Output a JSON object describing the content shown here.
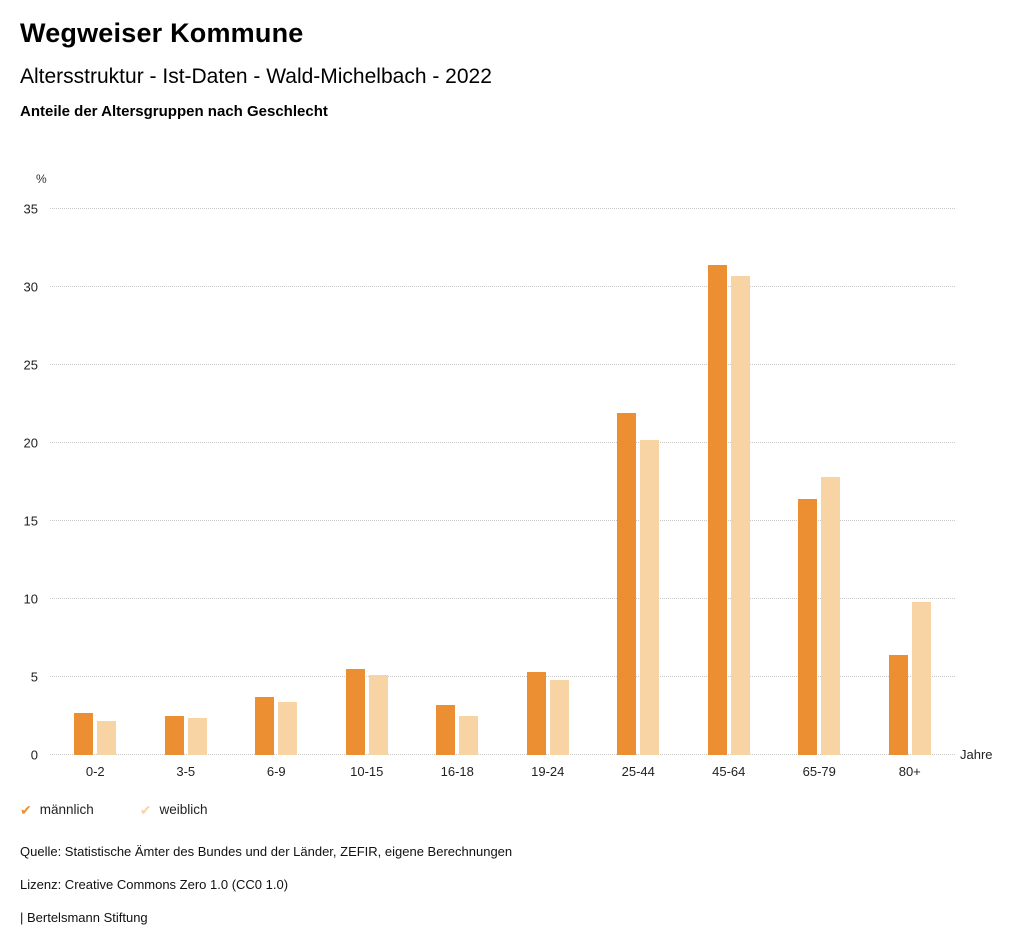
{
  "header": {
    "title": "Wegweiser Kommune",
    "subtitle": "Altersstruktur - Ist-Daten - Wald-Michelbach - 2022",
    "subsubtitle": "Anteile der Altersgruppen nach Geschlecht"
  },
  "chart_data": {
    "type": "bar",
    "title": "Anteile der Altersgruppen nach Geschlecht",
    "unit": "%",
    "xlabel": "Jahre",
    "ylabel": "%",
    "ylim": [
      0,
      35
    ],
    "yticks": [
      0,
      5,
      10,
      15,
      20,
      25,
      30,
      35
    ],
    "grid": "horizontal-dotted",
    "legend_position": "bottom-left",
    "categories": [
      "0-2",
      "3-5",
      "6-9",
      "10-15",
      "16-18",
      "19-24",
      "25-44",
      "45-64",
      "65-79",
      "80+"
    ],
    "series": [
      {
        "name": "männlich",
        "color": "#EC8F33",
        "values": [
          2.7,
          2.5,
          3.7,
          5.5,
          3.2,
          5.3,
          21.9,
          31.4,
          16.4,
          6.4
        ]
      },
      {
        "name": "weiblich",
        "color": "#F8D3A3",
        "values": [
          2.2,
          2.4,
          3.4,
          5.1,
          2.5,
          4.8,
          20.2,
          30.7,
          17.8,
          9.8
        ]
      }
    ]
  },
  "legend": {
    "items": [
      {
        "label": "männlich",
        "color": "#EC8F33",
        "icon": "check-icon"
      },
      {
        "label": "weiblich",
        "color": "#F8D3A3",
        "icon": "check-icon"
      }
    ]
  },
  "footer": {
    "source": "Quelle: Statistische Ämter des Bundes und der Länder, ZEFIR, eigene Berechnungen",
    "license": "Lizenz: Creative Commons Zero 1.0 (CC0 1.0)",
    "attribution": "| Bertelsmann Stiftung"
  }
}
